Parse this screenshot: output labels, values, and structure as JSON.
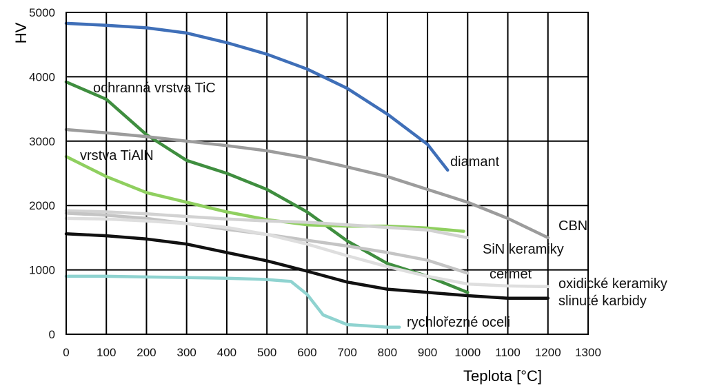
{
  "chart_data": {
    "type": "line",
    "xlabel": "Teplota [°C]",
    "ylabel": "HV",
    "xlim": [
      0,
      1300
    ],
    "ylim": [
      0,
      5000
    ],
    "x_ticks": [
      0,
      100,
      200,
      300,
      400,
      500,
      600,
      700,
      800,
      900,
      1000,
      1100,
      1200,
      1300
    ],
    "y_ticks": [
      0,
      1000,
      2000,
      3000,
      4000,
      5000
    ],
    "grid": true,
    "legend": "inline labels",
    "series": [
      {
        "name": "diamant",
        "color": "#3f6fb8",
        "points": [
          [
            0,
            4830
          ],
          [
            100,
            4800
          ],
          [
            200,
            4760
          ],
          [
            300,
            4680
          ],
          [
            400,
            4530
          ],
          [
            500,
            4350
          ],
          [
            600,
            4120
          ],
          [
            700,
            3820
          ],
          [
            800,
            3420
          ],
          [
            900,
            2950
          ],
          [
            950,
            2550
          ]
        ]
      },
      {
        "name": "ochranná vrstva TiC",
        "color": "#3f8e3f",
        "points": [
          [
            0,
            3920
          ],
          [
            100,
            3650
          ],
          [
            200,
            3100
          ],
          [
            300,
            2700
          ],
          [
            400,
            2500
          ],
          [
            500,
            2250
          ],
          [
            600,
            1900
          ],
          [
            700,
            1450
          ],
          [
            800,
            1100
          ],
          [
            900,
            900
          ],
          [
            1000,
            650
          ]
        ]
      },
      {
        "name": "CBN",
        "color": "#9c9c9c",
        "points": [
          [
            0,
            3180
          ],
          [
            100,
            3130
          ],
          [
            200,
            3070
          ],
          [
            300,
            3000
          ],
          [
            400,
            2930
          ],
          [
            500,
            2850
          ],
          [
            600,
            2740
          ],
          [
            700,
            2600
          ],
          [
            800,
            2450
          ],
          [
            900,
            2250
          ],
          [
            1000,
            2050
          ],
          [
            1100,
            1800
          ],
          [
            1200,
            1500
          ]
        ]
      },
      {
        "name": "vrstva TiAlN",
        "color": "#8fcf5f",
        "points": [
          [
            0,
            2760
          ],
          [
            100,
            2450
          ],
          [
            200,
            2200
          ],
          [
            300,
            2050
          ],
          [
            400,
            1900
          ],
          [
            500,
            1780
          ],
          [
            600,
            1700
          ],
          [
            700,
            1680
          ],
          [
            800,
            1680
          ],
          [
            900,
            1650
          ],
          [
            990,
            1600
          ]
        ]
      },
      {
        "name": "SiN keramiky",
        "color": "#d2d2d2",
        "points": [
          [
            0,
            1920
          ],
          [
            100,
            1900
          ],
          [
            200,
            1870
          ],
          [
            300,
            1830
          ],
          [
            400,
            1790
          ],
          [
            500,
            1760
          ],
          [
            600,
            1740
          ],
          [
            700,
            1700
          ],
          [
            800,
            1660
          ],
          [
            900,
            1620
          ],
          [
            1000,
            1500
          ]
        ]
      },
      {
        "name": "cermet",
        "color": "#c4c4c4",
        "points": [
          [
            0,
            1880
          ],
          [
            100,
            1850
          ],
          [
            200,
            1800
          ],
          [
            300,
            1720
          ],
          [
            400,
            1630
          ],
          [
            500,
            1550
          ],
          [
            600,
            1460
          ],
          [
            700,
            1370
          ],
          [
            800,
            1270
          ],
          [
            900,
            1150
          ],
          [
            1000,
            950
          ]
        ]
      },
      {
        "name": "oxidické keramiky",
        "color": "#dedede",
        "points": [
          [
            0,
            1800
          ],
          [
            100,
            1790
          ],
          [
            200,
            1760
          ],
          [
            300,
            1720
          ],
          [
            400,
            1660
          ],
          [
            500,
            1550
          ],
          [
            600,
            1400
          ],
          [
            700,
            1220
          ],
          [
            800,
            1050
          ],
          [
            900,
            900
          ],
          [
            1000,
            780
          ],
          [
            1100,
            750
          ],
          [
            1200,
            740
          ]
        ]
      },
      {
        "name": "slinuté karbidy",
        "color": "#111111",
        "points": [
          [
            0,
            1560
          ],
          [
            100,
            1530
          ],
          [
            200,
            1480
          ],
          [
            300,
            1400
          ],
          [
            400,
            1270
          ],
          [
            500,
            1140
          ],
          [
            600,
            980
          ],
          [
            700,
            810
          ],
          [
            800,
            700
          ],
          [
            900,
            650
          ],
          [
            1000,
            600
          ],
          [
            1100,
            560
          ],
          [
            1200,
            560
          ]
        ]
      },
      {
        "name": "rychlořezné oceli",
        "color": "#8fd3d0",
        "points": [
          [
            0,
            900
          ],
          [
            100,
            900
          ],
          [
            200,
            890
          ],
          [
            300,
            880
          ],
          [
            400,
            870
          ],
          [
            500,
            850
          ],
          [
            560,
            820
          ],
          [
            600,
            620
          ],
          [
            640,
            300
          ],
          [
            700,
            150
          ],
          [
            800,
            110
          ],
          [
            830,
            110
          ]
        ]
      }
    ]
  },
  "labels": {
    "ochranna_tic": "ochranná vrstva TiC",
    "tialn": "vrstva TiAlN",
    "diamant": "diamant",
    "cbn": "CBN",
    "sin": "SiN keramiky",
    "cermet": "cermet",
    "oxidicke": "oxidické keramiky",
    "slinute": "slinuté karbidy",
    "rychlorezne": "rychlořezné oceli"
  }
}
